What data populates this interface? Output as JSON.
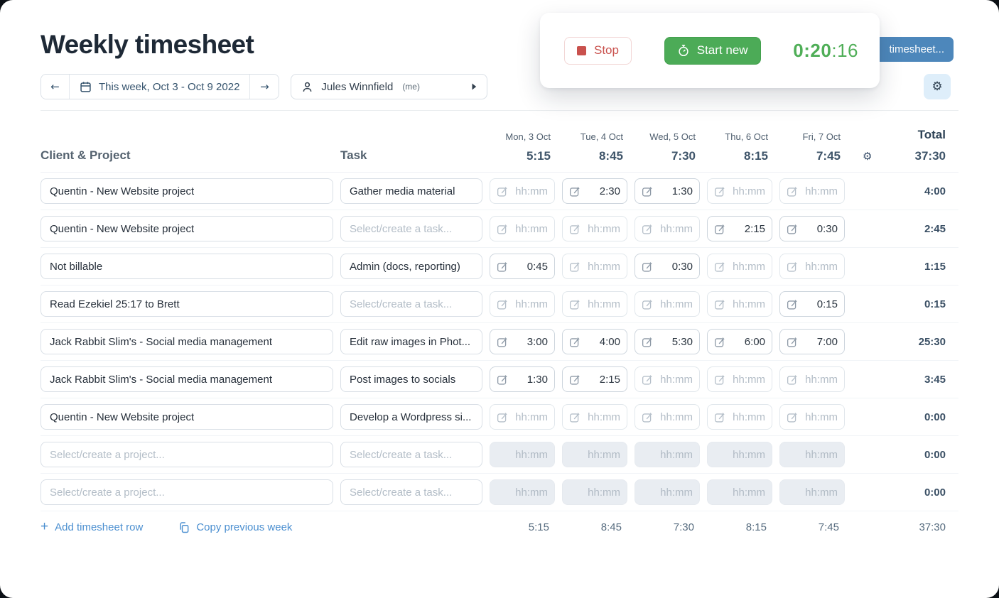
{
  "page": {
    "title": "Weekly timesheet"
  },
  "week_nav": {
    "label": "This week, Oct 3 - Oct 9 2022"
  },
  "user_select": {
    "name": "Jules Winnfield",
    "suffix": "(me)"
  },
  "timer_card": {
    "stop_label": "Stop",
    "start_label": "Start new",
    "time_main": "0:20",
    "time_secs": ":16"
  },
  "save_button": {
    "label": "timesheet..."
  },
  "table": {
    "col_project": "Client & Project",
    "col_task": "Task",
    "col_total": "Total",
    "project_placeholder": "Select/create a project...",
    "task_placeholder": "Select/create a task...",
    "cell_placeholder": "hh:mm",
    "days": [
      {
        "label": "Mon, 3 Oct",
        "total": "5:15"
      },
      {
        "label": "Tue, 4 Oct",
        "total": "8:45"
      },
      {
        "label": "Wed, 5 Oct",
        "total": "7:30"
      },
      {
        "label": "Thu, 6 Oct",
        "total": "8:15"
      },
      {
        "label": "Fri, 7 Oct",
        "total": "7:45"
      }
    ],
    "week_total": "37:30",
    "rows": [
      {
        "project": "Quentin - New Website project",
        "task": "Gather media material",
        "cells": [
          "",
          "2:30",
          "1:30",
          "",
          ""
        ],
        "total": "4:00",
        "disabled": false
      },
      {
        "project": "Quentin - New Website project",
        "task": "",
        "cells": [
          "",
          "",
          "",
          "2:15",
          "0:30"
        ],
        "total": "2:45",
        "disabled": false
      },
      {
        "project": "Not billable",
        "task": "Admin (docs, reporting)",
        "cells": [
          "0:45",
          "",
          "0:30",
          "",
          ""
        ],
        "total": "1:15",
        "disabled": false
      },
      {
        "project": "Read Ezekiel 25:17 to Brett",
        "task": "",
        "cells": [
          "",
          "",
          "",
          "",
          "0:15"
        ],
        "total": "0:15",
        "disabled": false
      },
      {
        "project": "Jack Rabbit Slim's - Social media management",
        "task": "Edit raw images in Phot...",
        "cells": [
          "3:00",
          "4:00",
          "5:30",
          "6:00",
          "7:00"
        ],
        "total": "25:30",
        "disabled": false
      },
      {
        "project": "Jack Rabbit Slim's - Social media management",
        "task": "Post images to socials",
        "cells": [
          "1:30",
          "2:15",
          "",
          "",
          ""
        ],
        "total": "3:45",
        "disabled": false
      },
      {
        "project": "Quentin - New Website project",
        "task": "Develop a Wordpress si...",
        "cells": [
          "",
          "",
          "",
          "",
          ""
        ],
        "total": "0:00",
        "disabled": false
      },
      {
        "project": "",
        "task": "",
        "cells": [
          "",
          "",
          "",
          "",
          ""
        ],
        "total": "0:00",
        "disabled": true
      },
      {
        "project": "",
        "task": "",
        "cells": [
          "",
          "",
          "",
          "",
          ""
        ],
        "total": "0:00",
        "disabled": true
      }
    ],
    "footer": {
      "add_row_label": "Add timesheet row",
      "copy_week_label": "Copy previous week",
      "day_totals": [
        "5:15",
        "8:45",
        "7:30",
        "8:15",
        "7:45"
      ],
      "week_total": "37:30"
    }
  },
  "colors": {
    "accent_blue": "#4b8fd0",
    "button_blue": "#4d87bb",
    "green": "#4cab57",
    "timer_green": "#4fae57",
    "stop_red": "#c9514d",
    "title_dark": "#1e2936",
    "slate_text": "#3e5469",
    "settings_bg": "#deeefa"
  }
}
